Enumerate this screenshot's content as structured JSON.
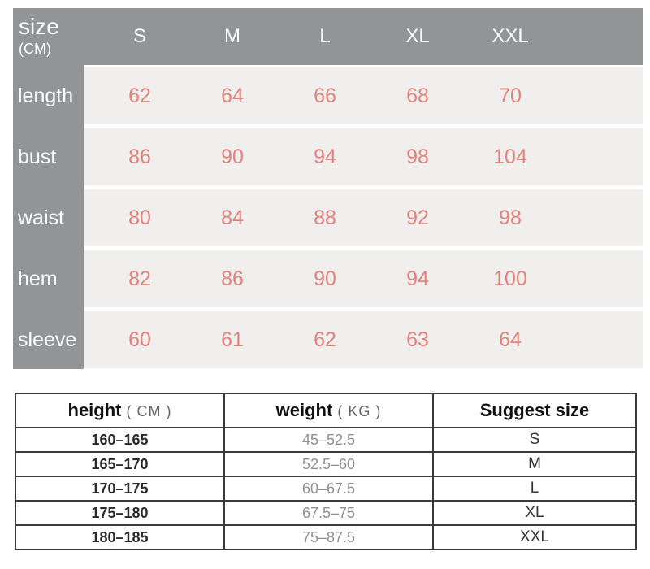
{
  "measurement_table": {
    "corner": {
      "title": "size",
      "unit": "(CM)"
    },
    "sizes": [
      "S",
      "M",
      "L",
      "XL",
      "XXL"
    ],
    "rows": [
      {
        "label": "length",
        "values": [
          "62",
          "64",
          "66",
          "68",
          "70"
        ]
      },
      {
        "label": "bust",
        "values": [
          "86",
          "90",
          "94",
          "98",
          "104"
        ]
      },
      {
        "label": "waist",
        "values": [
          "80",
          "84",
          "88",
          "92",
          "98"
        ]
      },
      {
        "label": "hem",
        "values": [
          "82",
          "86",
          "90",
          "94",
          "100"
        ]
      },
      {
        "label": "sleeve",
        "values": [
          "60",
          "61",
          "62",
          "63",
          "64"
        ]
      }
    ],
    "colors": {
      "header_bg": "#939495",
      "row_bg": "#f0efee",
      "value_text": "#e0837b",
      "label_text": "#fdfdfd"
    }
  },
  "suggest_table": {
    "columns": [
      {
        "label": "height",
        "unit": "( CM )"
      },
      {
        "label": "weight",
        "unit": "( KG )"
      },
      {
        "label": "Suggest size",
        "unit": ""
      }
    ],
    "rows": [
      [
        "160–165",
        "45–52.5",
        "S"
      ],
      [
        "165–170",
        "52.5–60",
        "M"
      ],
      [
        "170–175",
        "60–67.5",
        "L"
      ],
      [
        "175–180",
        "67.5–75",
        "XL"
      ],
      [
        "180–185",
        "75–87.5",
        "XXL"
      ]
    ]
  },
  "chart_data": [
    {
      "type": "table",
      "title": "size (CM)",
      "columns": [
        "S",
        "M",
        "L",
        "XL",
        "XXL"
      ],
      "row_labels": [
        "length",
        "bust",
        "waist",
        "hem",
        "sleeve"
      ],
      "values": [
        [
          62,
          64,
          66,
          68,
          70
        ],
        [
          86,
          90,
          94,
          98,
          104
        ],
        [
          80,
          84,
          88,
          92,
          98
        ],
        [
          82,
          86,
          90,
          94,
          100
        ],
        [
          60,
          61,
          62,
          63,
          64
        ]
      ]
    },
    {
      "type": "table",
      "columns": [
        "height ( CM )",
        "weight ( KG )",
        "Suggest size"
      ],
      "rows": [
        [
          "160–165",
          "45–52.5",
          "S"
        ],
        [
          "165–170",
          "52.5–60",
          "M"
        ],
        [
          "170–175",
          "60–67.5",
          "L"
        ],
        [
          "175–180",
          "67.5–75",
          "XL"
        ],
        [
          "180–185",
          "75–87.5",
          "XXL"
        ]
      ]
    }
  ]
}
